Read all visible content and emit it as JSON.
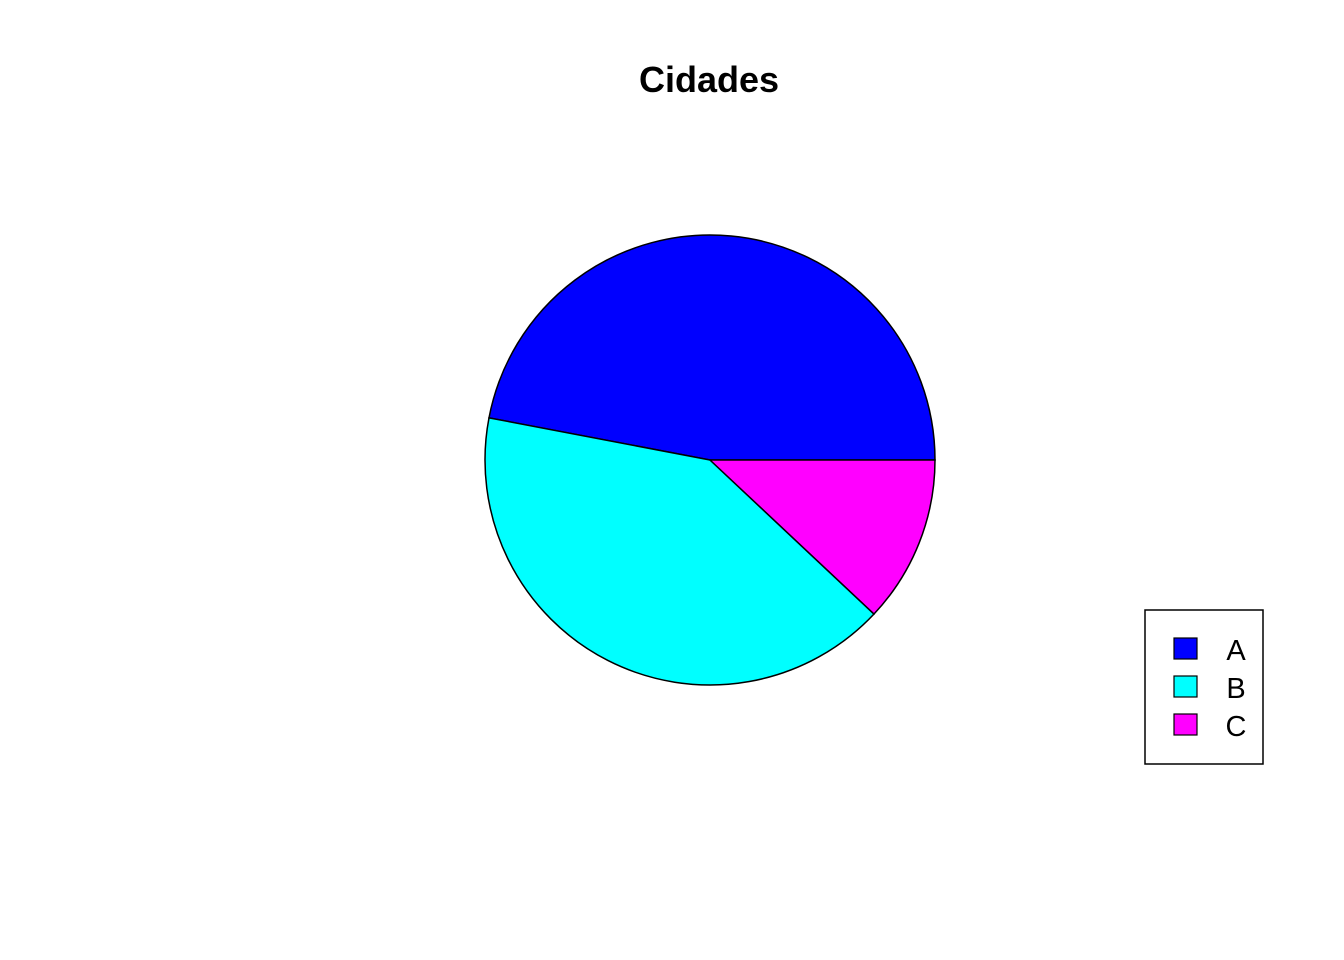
{
  "chart_data": {
    "type": "pie",
    "title": "Cidades",
    "categories": [
      "A",
      "B",
      "C"
    ],
    "values": [
      47,
      41,
      12
    ],
    "colors": [
      "#0000FF",
      "#00FFFF",
      "#FF00FF"
    ],
    "start_angle_deg": 0,
    "direction": "counterclockwise",
    "legend": {
      "placement": "bottom-right",
      "entries": [
        "A",
        "B",
        "C"
      ]
    }
  }
}
